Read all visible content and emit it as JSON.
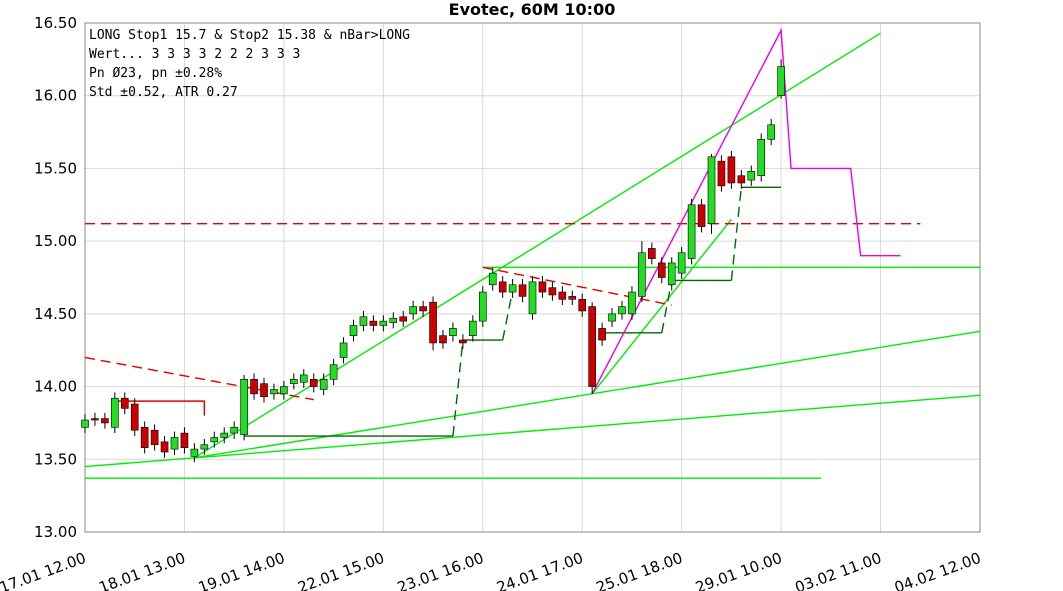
{
  "chart_data": {
    "type": "candlestick",
    "title": "Evotec, 60M 10:00",
    "info_lines": [
      "LONG Stop1 15.7 & Stop2 15.38 & nBar>LONG",
      "Wert... 3  3  3  3  2  2  2  3  3  3",
      "Pn  Ø23, pn ±0.28%",
      "Std ±0.52, ATR 0.27"
    ],
    "x": [
      0,
      1,
      2,
      3,
      4,
      5,
      6,
      7,
      8,
      9,
      10,
      11,
      12,
      13,
      14,
      15,
      16,
      17,
      18,
      19,
      20,
      21,
      22,
      23,
      24,
      25,
      26,
      27,
      28,
      29,
      30,
      31,
      32,
      33,
      34,
      35,
      36,
      37,
      38,
      39,
      40,
      41,
      42,
      43,
      44,
      45,
      46,
      47,
      48,
      49,
      50,
      51,
      52,
      53,
      54,
      55,
      56,
      57,
      58,
      59,
      60,
      61,
      62,
      63,
      64,
      65,
      66,
      67,
      68,
      69,
      70
    ],
    "open": [
      13.72,
      13.78,
      13.78,
      13.72,
      13.92,
      13.88,
      13.72,
      13.7,
      13.62,
      13.57,
      13.68,
      13.52,
      13.57,
      13.62,
      13.65,
      13.68,
      13.67,
      14.05,
      14.02,
      13.95,
      13.95,
      14.02,
      14.03,
      14.05,
      13.98,
      14.05,
      14.2,
      14.35,
      14.42,
      14.45,
      14.42,
      14.44,
      14.48,
      14.5,
      14.55,
      14.58,
      14.35,
      14.35,
      14.32,
      14.35,
      14.45,
      14.7,
      14.72,
      14.65,
      14.7,
      14.5,
      14.72,
      14.68,
      14.65,
      14.62,
      14.6,
      14.55,
      14.4,
      14.45,
      14.5,
      14.5,
      14.62,
      14.95,
      14.85,
      14.7,
      14.78,
      14.88,
      15.25,
      15.12,
      15.55,
      15.58,
      15.45,
      15.42,
      15.45,
      15.7,
      16.0
    ],
    "high": [
      13.81,
      13.82,
      13.82,
      13.96,
      13.96,
      13.92,
      13.76,
      13.74,
      13.66,
      13.69,
      13.72,
      13.61,
      13.64,
      13.69,
      13.72,
      13.76,
      14.08,
      14.09,
      14.06,
      14.02,
      14.04,
      14.09,
      14.12,
      14.09,
      14.09,
      14.19,
      14.34,
      14.46,
      14.52,
      14.49,
      14.49,
      14.51,
      14.52,
      14.59,
      14.59,
      14.62,
      14.39,
      14.44,
      14.36,
      14.49,
      14.69,
      14.82,
      14.76,
      14.74,
      14.74,
      14.76,
      14.76,
      14.72,
      14.69,
      14.66,
      14.64,
      14.58,
      14.44,
      14.54,
      14.59,
      14.69,
      15.0,
      14.99,
      14.89,
      14.89,
      14.96,
      15.29,
      15.29,
      15.6,
      15.59,
      15.62,
      15.49,
      15.52,
      15.74,
      15.84,
      16.25
    ],
    "low": [
      13.68,
      13.73,
      13.71,
      13.68,
      13.81,
      13.66,
      13.54,
      13.56,
      13.51,
      13.53,
      13.54,
      13.48,
      13.53,
      13.58,
      13.61,
      13.64,
      13.63,
      13.91,
      13.89,
      13.91,
      13.91,
      13.98,
      13.99,
      13.96,
      13.94,
      14.01,
      14.16,
      14.31,
      14.38,
      14.38,
      14.38,
      14.4,
      14.41,
      14.46,
      14.48,
      14.25,
      14.26,
      14.31,
      14.26,
      14.31,
      14.41,
      14.66,
      14.61,
      14.61,
      14.58,
      14.46,
      14.61,
      14.59,
      14.56,
      14.56,
      14.48,
      13.95,
      14.28,
      14.41,
      14.46,
      14.46,
      14.58,
      14.84,
      14.71,
      14.66,
      14.74,
      14.84,
      15.06,
      15.05,
      15.34,
      15.36,
      15.36,
      15.38,
      15.41,
      15.66,
      15.98
    ],
    "close": [
      13.77,
      13.77,
      13.75,
      13.92,
      13.85,
      13.7,
      13.58,
      13.6,
      13.55,
      13.65,
      13.58,
      13.57,
      13.6,
      13.65,
      13.68,
      13.72,
      14.05,
      13.95,
      13.93,
      13.98,
      14.0,
      14.05,
      14.08,
      14.0,
      14.05,
      14.15,
      14.3,
      14.42,
      14.48,
      14.42,
      14.45,
      14.47,
      14.45,
      14.55,
      14.52,
      14.3,
      14.3,
      14.4,
      14.3,
      14.45,
      14.65,
      14.78,
      14.65,
      14.7,
      14.62,
      14.72,
      14.65,
      14.63,
      14.6,
      14.6,
      14.52,
      14.0,
      14.32,
      14.5,
      14.55,
      14.65,
      14.92,
      14.88,
      14.75,
      14.85,
      14.92,
      15.25,
      15.1,
      15.58,
      15.38,
      15.4,
      15.4,
      15.48,
      15.7,
      15.8,
      16.2
    ],
    "up_color": "#22dd22",
    "down_color": "#cc0000",
    "overlays": [
      {
        "color": "#00ee00",
        "dash": false,
        "x": [
          0,
          74
        ],
        "y": [
          13.37,
          13.37
        ]
      },
      {
        "color": "#00ee00",
        "dash": false,
        "x": [
          0,
          90
        ],
        "y": [
          13.45,
          13.94
        ]
      },
      {
        "color": "#00ee00",
        "dash": false,
        "x": [
          11,
          90
        ],
        "y": [
          13.51,
          14.38
        ]
      },
      {
        "color": "#00ee00",
        "dash": false,
        "x": [
          11,
          80
        ],
        "y": [
          13.51,
          16.43
        ]
      },
      {
        "color": "#00ee00",
        "dash": false,
        "x": [
          51,
          65
        ],
        "y": [
          13.95,
          15.15
        ]
      },
      {
        "color": "#00ee00",
        "dash": false,
        "x": [
          40,
          90
        ],
        "y": [
          14.82,
          14.82
        ]
      },
      {
        "color": "#006600",
        "dash": false,
        "x": [
          16,
          37
        ],
        "y": [
          13.66,
          13.66
        ]
      },
      {
        "color": "#006600",
        "dash": true,
        "x": [
          37,
          38
        ],
        "y": [
          13.66,
          14.32
        ]
      },
      {
        "color": "#006600",
        "dash": false,
        "x": [
          38,
          42
        ],
        "y": [
          14.32,
          14.32
        ]
      },
      {
        "color": "#006600",
        "dash": true,
        "x": [
          42,
          43
        ],
        "y": [
          14.32,
          14.66
        ]
      },
      {
        "color": "#006600",
        "dash": false,
        "x": [
          52,
          58
        ],
        "y": [
          14.37,
          14.37
        ]
      },
      {
        "color": "#006600",
        "dash": true,
        "x": [
          58,
          59
        ],
        "y": [
          14.37,
          14.73
        ]
      },
      {
        "color": "#006600",
        "dash": false,
        "x": [
          59,
          65
        ],
        "y": [
          14.73,
          14.73
        ]
      },
      {
        "color": "#006600",
        "dash": true,
        "x": [
          65,
          66
        ],
        "y": [
          14.73,
          15.37
        ]
      },
      {
        "color": "#006600",
        "dash": false,
        "x": [
          66,
          70
        ],
        "y": [
          15.37,
          15.37
        ]
      },
      {
        "color": "#dd0000",
        "dash": true,
        "x": [
          0,
          84
        ],
        "y": [
          15.12,
          15.12
        ]
      },
      {
        "color": "#dd0000",
        "dash": true,
        "x": [
          0,
          23
        ],
        "y": [
          14.2,
          13.91
        ]
      },
      {
        "color": "#dd0000",
        "dash": true,
        "x": [
          40,
          59
        ],
        "y": [
          14.82,
          14.56
        ]
      },
      {
        "color": "#dd0000",
        "dash": false,
        "x": [
          3,
          12,
          12
        ],
        "y": [
          13.9,
          13.9,
          13.8
        ]
      },
      {
        "color": "#ee00ee",
        "dash": false,
        "x": [
          51,
          70,
          71,
          77,
          78,
          82
        ],
        "y": [
          13.95,
          16.45,
          15.5,
          15.5,
          14.9,
          14.9
        ]
      }
    ],
    "xlim": [
      0,
      90
    ],
    "xticks": [
      {
        "value": 0,
        "label": "17.01 12.00"
      },
      {
        "value": 10,
        "label": "18.01 13.00"
      },
      {
        "value": 20,
        "label": "19.01 14.00"
      },
      {
        "value": 30,
        "label": "22.01 15.00"
      },
      {
        "value": 40,
        "label": "23.01 16.00"
      },
      {
        "value": 50,
        "label": "24.01 17.00"
      },
      {
        "value": 60,
        "label": "25.01 18.00"
      },
      {
        "value": 70,
        "label": "29.01 10.00"
      },
      {
        "value": 80,
        "label": "03.02 11.00"
      },
      {
        "value": 90,
        "label": "04.02 12.00"
      }
    ],
    "ylim": [
      13.0,
      16.5
    ],
    "yticks": [
      {
        "value": 13.0,
        "label": "13.00"
      },
      {
        "value": 13.5,
        "label": "13.50"
      },
      {
        "value": 14.0,
        "label": "14.00"
      },
      {
        "value": 14.5,
        "label": "14.50"
      },
      {
        "value": 15.0,
        "label": "15.00"
      },
      {
        "value": 15.5,
        "label": "15.50"
      },
      {
        "value": 16.0,
        "label": "16.00"
      },
      {
        "value": 16.5,
        "label": "16.50"
      }
    ],
    "grid": true
  }
}
